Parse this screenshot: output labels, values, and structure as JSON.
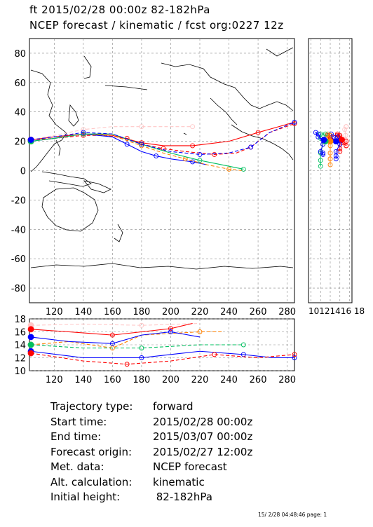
{
  "header": {
    "line1": "ft 2015/02/28 00:00z  82-182hPa",
    "line2": "NCEP forecast / kinematic / fcst org:0227 12z"
  },
  "chart_data": [
    {
      "type": "line",
      "title": "trajectory map (latitude vs longitude)",
      "x_ticks": [
        120,
        140,
        160,
        180,
        200,
        220,
        240,
        260,
        280
      ],
      "y_ticks": [
        80,
        60,
        40,
        20,
        0,
        -20,
        -40,
        -60,
        -80
      ],
      "xlim": [
        103,
        285
      ],
      "ylim": [
        -90,
        90
      ],
      "grid": true,
      "series": [
        {
          "color": "#ffc8c8",
          "points": [
            [
              104,
              21
            ],
            [
              120,
              24
            ],
            [
              140,
              28
            ],
            [
              160,
              30
            ],
            [
              180,
              30
            ],
            [
              200,
              30
            ],
            [
              215,
              30
            ]
          ]
        },
        {
          "color": "#ff0000",
          "points": [
            [
              104,
              21
            ],
            [
              120,
              23
            ],
            [
              140,
              25
            ],
            [
              160,
              24
            ],
            [
              180,
              19
            ],
            [
              195,
              17
            ],
            [
              215,
              17
            ],
            [
              240,
              20
            ],
            [
              260,
              26
            ],
            [
              285,
              33
            ]
          ]
        },
        {
          "color": "#ff0000",
          "points": [
            [
              104,
              21
            ],
            [
              120,
              22
            ],
            [
              140,
              24
            ],
            [
              155,
              24
            ],
            [
              170,
              22
            ],
            [
              180,
              18
            ],
            [
              195,
              15
            ],
            [
              210,
              13
            ],
            [
              230,
              11
            ],
            [
              245,
              12
            ],
            [
              255,
              16
            ],
            [
              268,
              26
            ],
            [
              285,
              32
            ]
          ]
        },
        {
          "color": "#0000ff",
          "points": [
            [
              104,
              20
            ],
            [
              120,
              22
            ],
            [
              140,
              25
            ],
            [
              160,
              23
            ],
            [
              170,
              18
            ],
            [
              180,
              13
            ],
            [
              190,
              10
            ],
            [
              200,
              8
            ],
            [
              215,
              6
            ],
            [
              225,
              4
            ]
          ]
        },
        {
          "color": "#ff8000",
          "points": [
            [
              104,
              20
            ],
            [
              120,
              22
            ],
            [
              140,
              25
            ],
            [
              160,
              24
            ],
            [
              180,
              17
            ],
            [
              195,
              12
            ],
            [
              210,
              8
            ],
            [
              225,
              4
            ],
            [
              240,
              1
            ],
            [
              250,
              0
            ]
          ]
        },
        {
          "color": "#00c060",
          "points": [
            [
              104,
              20
            ],
            [
              120,
              22
            ],
            [
              140,
              25
            ],
            [
              160,
              25
            ],
            [
              180,
              18
            ],
            [
              200,
              12
            ],
            [
              220,
              7
            ],
            [
              240,
              3
            ],
            [
              250,
              1
            ]
          ]
        },
        {
          "color": "#0000ff",
          "points": [
            [
              104,
              21
            ],
            [
              120,
              23
            ],
            [
              140,
              26
            ],
            [
              160,
              25
            ],
            [
              180,
              18
            ],
            [
              200,
              13
            ],
            [
              220,
              11
            ],
            [
              240,
              12
            ],
            [
              255,
              16
            ],
            [
              268,
              26
            ],
            [
              285,
              33
            ]
          ]
        }
      ]
    },
    {
      "type": "line",
      "title": "height vs longitude panel",
      "x_ticks": [
        120,
        140,
        160,
        180,
        200,
        220,
        240,
        260,
        280
      ],
      "y_ticks": [
        18,
        16,
        14,
        12,
        10
      ],
      "xlim": [
        103,
        285
      ],
      "ylim": [
        10,
        18
      ],
      "grid": true,
      "series": [
        {
          "color": "#ffc8c8",
          "points": [
            [
              104,
              17
            ],
            [
              140,
              17.2
            ],
            [
              180,
              17
            ],
            [
              220,
              17.3
            ]
          ]
        },
        {
          "color": "#ff0000",
          "points": [
            [
              104,
              16.4
            ],
            [
              130,
              16
            ],
            [
              160,
              15.5
            ],
            [
              180,
              16
            ],
            [
              200,
              16.5
            ],
            [
              215,
              17.3
            ]
          ]
        },
        {
          "color": "#ff8000",
          "points": [
            [
              104,
              14
            ],
            [
              130,
              14.5
            ],
            [
              160,
              13.5
            ],
            [
              180,
              15.5
            ],
            [
              220,
              16
            ],
            [
              235,
              16
            ]
          ]
        },
        {
          "color": "#0000ff",
          "points": [
            [
              104,
              15.2
            ],
            [
              130,
              14.5
            ],
            [
              160,
              14.2
            ],
            [
              180,
              15.5
            ],
            [
              200,
              16
            ],
            [
              220,
              15.2
            ]
          ]
        },
        {
          "color": "#00c060",
          "points": [
            [
              104,
              14
            ],
            [
              140,
              13.5
            ],
            [
              180,
              13.5
            ],
            [
              220,
              14
            ],
            [
              250,
              14
            ]
          ]
        },
        {
          "color": "#0000ff",
          "points": [
            [
              104,
              13
            ],
            [
              140,
              12
            ],
            [
              180,
              12
            ],
            [
              220,
              13
            ],
            [
              250,
              12.5
            ],
            [
              270,
              12
            ],
            [
              285,
              12
            ]
          ]
        },
        {
          "color": "#ff0000",
          "points": [
            [
              104,
              12.7
            ],
            [
              140,
              11.5
            ],
            [
              170,
              11
            ],
            [
              200,
              11.5
            ],
            [
              230,
              12.5
            ],
            [
              260,
              12
            ],
            [
              285,
              12.5
            ]
          ]
        }
      ]
    }
  ],
  "side_panel": {
    "x_tick_text": "10121416 18"
  },
  "info": [
    {
      "label": "Trajectory type:",
      "value": "forward"
    },
    {
      "label": "Start time:",
      "value": "2015/02/28 00:00z"
    },
    {
      "label": "End time:",
      "value": "2015/03/07 00:00z"
    },
    {
      "label": "Forecast origin:",
      "value": "2015/02/27 12:00z"
    },
    {
      "label": "Met. data:",
      "value": "NCEP forecast"
    },
    {
      "label": "Alt. calculation:",
      "value": "kinematic"
    },
    {
      "label": "Initial height:",
      "value": " 82-182hPa"
    }
  ],
  "footer": "15/ 2/28 04:48:46 page: 1"
}
